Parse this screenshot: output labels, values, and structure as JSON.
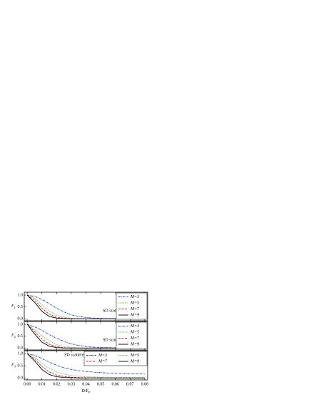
{
  "charts": [
    {
      "type": "line",
      "ylabel": "F",
      "ylabel_sub": "1",
      "annotation": "SD scatterers",
      "x": [
        0,
        0.005,
        0.01,
        0.015,
        0.02,
        0.025,
        0.03,
        0.035,
        0.04,
        0.045,
        0.05,
        0.055,
        0.06,
        0.065,
        0.07,
        0.075,
        0.08
      ],
      "xlim": [
        -0.002,
        0.082
      ],
      "ylim": [
        -0.08,
        1.12
      ],
      "xticks": [
        0,
        0.01,
        0.02,
        0.03,
        0.04,
        0.05,
        0.06,
        0.07,
        0.08
      ],
      "yticks": [
        {
          "value": 0,
          "label": "0.0"
        },
        {
          "value": 0.5,
          "label": "0.5"
        },
        {
          "value": 1,
          "label": "1.0"
        }
      ],
      "legend": "upper right",
      "legend_columns": 1,
      "series": [
        {
          "name": "M=3",
          "color": "#1f3fd6",
          "style": "dashdot",
          "values": [
            1,
            0.95,
            0.82,
            0.64,
            0.45,
            0.29,
            0.17,
            0.1,
            0.06,
            0.03,
            0.02,
            0.01,
            0.01,
            0,
            0,
            0,
            0
          ]
        },
        {
          "name": "M=5",
          "color": "#3aa63a",
          "style": "dotted",
          "values": [
            1,
            0.88,
            0.6,
            0.33,
            0.16,
            0.07,
            0.03,
            0.01,
            0,
            0,
            0,
            0,
            0,
            0,
            0,
            0,
            0
          ]
        },
        {
          "name": "M=7",
          "color": "#d42020",
          "style": "dashed",
          "values": [
            1,
            0.8,
            0.45,
            0.2,
            0.07,
            0.03,
            0.01,
            0,
            0,
            0,
            0,
            0,
            0,
            0,
            0,
            0,
            0
          ]
        },
        {
          "name": "M=9",
          "color": "#000000",
          "style": "solid",
          "values": [
            1,
            0.7,
            0.32,
            0.1,
            0.03,
            0.01,
            0,
            0,
            0,
            0,
            0,
            0,
            0,
            0,
            0,
            0,
            0
          ]
        }
      ]
    },
    {
      "type": "line",
      "ylabel": "F",
      "ylabel_sub": "2",
      "annotation": "SD scatterers",
      "x": [
        0,
        0.005,
        0.01,
        0.015,
        0.02,
        0.025,
        0.03,
        0.035,
        0.04,
        0.045,
        0.05,
        0.055,
        0.06,
        0.065,
        0.07,
        0.075,
        0.08
      ],
      "xlim": [
        -0.002,
        0.082
      ],
      "ylim": [
        -0.08,
        1.12
      ],
      "xticks": [
        0,
        0.01,
        0.02,
        0.03,
        0.04,
        0.05,
        0.06,
        0.07,
        0.08
      ],
      "yticks": [
        {
          "value": 0,
          "label": "0.0"
        },
        {
          "value": 0.5,
          "label": "0.5"
        },
        {
          "value": 1,
          "label": "1.0"
        }
      ],
      "legend": "upper right",
      "legend_columns": 1,
      "series": [
        {
          "name": "M=3",
          "color": "#1f3fd6",
          "style": "dashdot",
          "values": [
            1,
            0.9,
            0.75,
            0.57,
            0.41,
            0.28,
            0.18,
            0.11,
            0.07,
            0.04,
            0.03,
            0.02,
            0.01,
            0.01,
            0,
            0,
            0
          ]
        },
        {
          "name": "M=5",
          "color": "#3aa63a",
          "style": "dotted",
          "values": [
            1,
            0.8,
            0.52,
            0.3,
            0.15,
            0.07,
            0.03,
            0.01,
            0,
            0,
            0,
            0,
            0,
            0,
            0,
            0,
            0
          ]
        },
        {
          "name": "M=7",
          "color": "#d42020",
          "style": "dashed",
          "values": [
            1,
            0.7,
            0.38,
            0.16,
            0.06,
            0.02,
            0,
            0,
            0,
            0,
            0,
            0,
            0,
            0,
            0,
            0,
            0
          ]
        },
        {
          "name": "M=9",
          "color": "#000000",
          "style": "solid",
          "values": [
            1,
            0.6,
            0.25,
            0.08,
            0.02,
            0,
            0,
            0,
            0,
            0,
            0,
            0,
            0,
            0,
            0,
            0,
            0
          ]
        }
      ]
    },
    {
      "type": "line",
      "ylabel": "F",
      "ylabel_sub": "3",
      "annotation": "SD scatterers",
      "xlabel": "D/E",
      "xlabel_sub": "F",
      "x": [
        0,
        0.005,
        0.01,
        0.015,
        0.02,
        0.025,
        0.03,
        0.035,
        0.04,
        0.045,
        0.05,
        0.055,
        0.06,
        0.065,
        0.07,
        0.075,
        0.08
      ],
      "xlim": [
        -0.002,
        0.082
      ],
      "ylim": [
        -0.08,
        1.12
      ],
      "xticks": [
        {
          "value": 0,
          "label": "0.00"
        },
        {
          "value": 0.01,
          "label": "0.01"
        },
        {
          "value": 0.02,
          "label": "0.02"
        },
        {
          "value": 0.03,
          "label": "0.03"
        },
        {
          "value": 0.04,
          "label": "0.04"
        },
        {
          "value": 0.05,
          "label": "0.05"
        },
        {
          "value": 0.06,
          "label": "0.06"
        },
        {
          "value": 0.07,
          "label": "0.07"
        },
        {
          "value": 0.08,
          "label": "0.08"
        }
      ],
      "yticks": [
        {
          "value": 0,
          "label": "0.0"
        },
        {
          "value": 0.5,
          "label": "0.5"
        },
        {
          "value": 1,
          "label": "1.0"
        }
      ],
      "legend": "upper right",
      "legend_columns": 2,
      "series": [
        {
          "name": "M=3",
          "color": "#1f3fd6",
          "style": "dashdot",
          "values": [
            1,
            0.93,
            0.8,
            0.65,
            0.52,
            0.42,
            0.35,
            0.3,
            0.27,
            0.24,
            0.22,
            0.2,
            0.19,
            0.18,
            0.17,
            0.17,
            0.16
          ]
        },
        {
          "name": "M=5",
          "color": "#3aa63a",
          "style": "dotted",
          "values": [
            1,
            0.85,
            0.6,
            0.4,
            0.25,
            0.16,
            0.1,
            0.07,
            0.05,
            0.04,
            0.03,
            0.03,
            0.02,
            0.02,
            0.02,
            0.02,
            0.02
          ]
        },
        {
          "name": "M=7",
          "color": "#d42020",
          "style": "dashed",
          "values": [
            1,
            0.78,
            0.47,
            0.25,
            0.12,
            0.06,
            0.03,
            0.02,
            0.01,
            0.01,
            0.01,
            0,
            0,
            0,
            0,
            0,
            0
          ]
        },
        {
          "name": "M=9",
          "color": "#000000",
          "style": "solid",
          "values": [
            1,
            0.7,
            0.35,
            0.14,
            0.05,
            0.02,
            0.01,
            0,
            0,
            0,
            0,
            0,
            0,
            0,
            0,
            0,
            0
          ]
        }
      ]
    }
  ]
}
